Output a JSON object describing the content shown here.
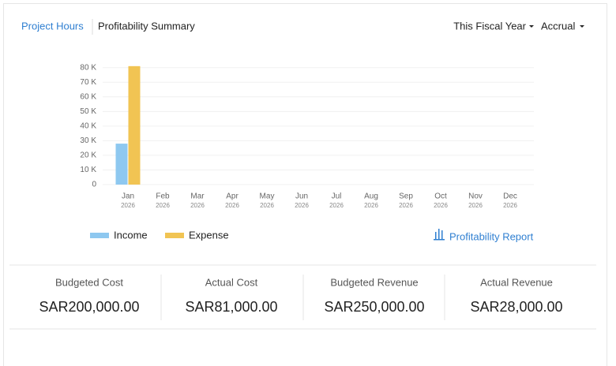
{
  "header": {
    "tabs": [
      "Project Hours",
      "Profitability Summary"
    ],
    "period": "This Fiscal Year",
    "basis": "Accrual"
  },
  "chart_data": {
    "type": "bar",
    "categories": [
      "Jan",
      "Feb",
      "Mar",
      "Apr",
      "May",
      "Jun",
      "Jul",
      "Aug",
      "Sep",
      "Oct",
      "Nov",
      "Dec"
    ],
    "category_years": [
      "2026",
      "2026",
      "2026",
      "2026",
      "2026",
      "2026",
      "2026",
      "2026",
      "2026",
      "2026",
      "2026",
      "2026"
    ],
    "series": [
      {
        "name": "Income",
        "color": "#8ec8f0",
        "values": [
          28000,
          0,
          0,
          0,
          0,
          0,
          0,
          0,
          0,
          0,
          0,
          0
        ]
      },
      {
        "name": "Expense",
        "color": "#f1c453",
        "values": [
          81000,
          0,
          0,
          0,
          0,
          0,
          0,
          0,
          0,
          0,
          0,
          0
        ]
      }
    ],
    "ylim": [
      0,
      82000
    ],
    "yticks": [
      0,
      {
        "value": 10000,
        "label": "10 K"
      },
      {
        "value": 20000,
        "label": "20 K"
      },
      {
        "value": 30000,
        "label": "30 K"
      },
      {
        "value": 40000,
        "label": "40 K"
      },
      {
        "value": 50000,
        "label": "50 K"
      },
      {
        "value": 60000,
        "label": "60 K"
      },
      {
        "value": 70000,
        "label": "70 K"
      },
      {
        "value": 80000,
        "label": "80 K"
      }
    ],
    "grid": true
  },
  "report_link": "Profitability Report",
  "summary": [
    {
      "label": "Budgeted Cost",
      "value": "SAR200,000.00"
    },
    {
      "label": "Actual Cost",
      "value": "SAR81,000.00"
    },
    {
      "label": "Budgeted Revenue",
      "value": "SAR250,000.00"
    },
    {
      "label": "Actual Revenue",
      "value": "SAR28,000.00"
    }
  ]
}
